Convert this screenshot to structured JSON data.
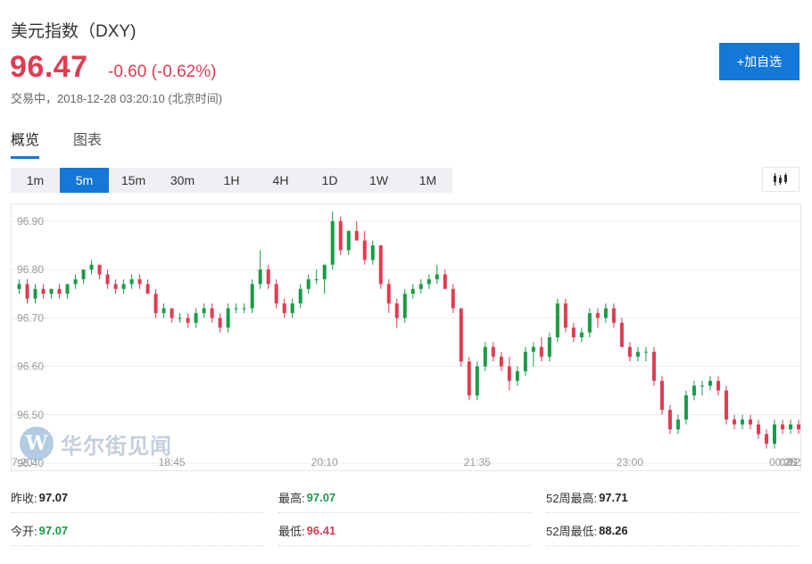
{
  "header": {
    "title": "美元指数（DXY)",
    "price": "96.47",
    "change": "-0.60 (-0.62%)",
    "status": "交易中，",
    "timestamp": "2018-12-28 03:20:10",
    "timezone": "(北京时间)",
    "add_button": "+加自选"
  },
  "tabs": [
    {
      "label": "概览",
      "active": true
    },
    {
      "label": "图表",
      "active": false
    }
  ],
  "periods": [
    {
      "label": "1m",
      "active": false
    },
    {
      "label": "5m",
      "active": true
    },
    {
      "label": "15m",
      "active": false
    },
    {
      "label": "30m",
      "active": false
    },
    {
      "label": "1H",
      "active": false
    },
    {
      "label": "4H",
      "active": false
    },
    {
      "label": "1D",
      "active": false
    },
    {
      "label": "1W",
      "active": false
    },
    {
      "label": "1M",
      "active": false
    }
  ],
  "watermark": {
    "logo": "W",
    "text": "华尔街见闻"
  },
  "colors": {
    "up": "#1a9b47",
    "down": "#e03b51",
    "accent": "#1478d8",
    "grid": "#ececec"
  },
  "chart_data": {
    "type": "candlestick",
    "ylim": [
      96.4,
      96.92
    ],
    "y_ticks": [
      96.9,
      96.8,
      96.7,
      96.6,
      96.5,
      96.4
    ],
    "y_tick_labels": [
      "96.90",
      "96.80",
      "96.70",
      "96.60",
      "96.50",
      "96.40"
    ],
    "x_tick_labels": [
      "17:20",
      "18:45",
      "20:10",
      "21:35",
      "23:00",
      "00:25",
      "01:55",
      "03:2"
    ],
    "x_tick_index": [
      0,
      19,
      38,
      57,
      76,
      95,
      114,
      133
    ],
    "interval": "5m",
    "candles": [
      [
        96.76,
        96.78,
        96.75,
        96.77
      ],
      [
        96.77,
        96.78,
        96.73,
        96.74
      ],
      [
        96.74,
        96.77,
        96.73,
        96.76
      ],
      [
        96.76,
        96.77,
        96.74,
        96.75
      ],
      [
        96.75,
        96.76,
        96.74,
        96.76
      ],
      [
        96.76,
        96.77,
        96.74,
        96.75
      ],
      [
        96.75,
        96.77,
        96.74,
        96.77
      ],
      [
        96.77,
        96.79,
        96.76,
        96.78
      ],
      [
        96.78,
        96.8,
        96.77,
        96.8
      ],
      [
        96.8,
        96.82,
        96.79,
        96.81
      ],
      [
        96.81,
        96.81,
        96.78,
        96.79
      ],
      [
        96.79,
        96.8,
        96.76,
        96.77
      ],
      [
        96.77,
        96.78,
        96.75,
        96.76
      ],
      [
        96.76,
        96.78,
        96.75,
        96.77
      ],
      [
        96.77,
        96.79,
        96.76,
        96.78
      ],
      [
        96.78,
        96.79,
        96.76,
        96.77
      ],
      [
        96.77,
        96.78,
        96.75,
        96.75
      ],
      [
        96.75,
        96.76,
        96.7,
        96.71
      ],
      [
        96.71,
        96.73,
        96.7,
        96.72
      ],
      [
        96.72,
        96.72,
        96.69,
        96.7
      ],
      [
        96.7,
        96.71,
        96.69,
        96.7
      ],
      [
        96.7,
        96.71,
        96.68,
        96.69
      ],
      [
        96.69,
        96.72,
        96.68,
        96.71
      ],
      [
        96.71,
        96.73,
        96.7,
        96.72
      ],
      [
        96.72,
        96.73,
        96.69,
        96.7
      ],
      [
        96.7,
        96.71,
        96.67,
        96.68
      ],
      [
        96.68,
        96.73,
        96.67,
        96.72
      ],
      [
        96.72,
        96.73,
        96.71,
        96.72
      ],
      [
        96.72,
        96.73,
        96.71,
        96.72
      ],
      [
        96.72,
        96.78,
        96.71,
        96.77
      ],
      [
        96.77,
        96.84,
        96.76,
        96.8
      ],
      [
        96.8,
        96.81,
        96.76,
        96.77
      ],
      [
        96.77,
        96.78,
        96.72,
        96.73
      ],
      [
        96.73,
        96.74,
        96.7,
        96.71
      ],
      [
        96.71,
        96.74,
        96.7,
        96.73
      ],
      [
        96.73,
        96.77,
        96.72,
        96.76
      ],
      [
        96.76,
        96.79,
        96.75,
        96.78
      ],
      [
        96.78,
        96.8,
        96.77,
        96.78
      ],
      [
        96.78,
        96.81,
        96.75,
        96.81
      ],
      [
        96.81,
        96.92,
        96.8,
        96.9
      ],
      [
        96.9,
        96.91,
        96.83,
        96.84
      ],
      [
        96.84,
        96.88,
        96.83,
        96.88
      ],
      [
        96.88,
        96.9,
        96.86,
        96.86
      ],
      [
        96.86,
        96.88,
        96.81,
        96.82
      ],
      [
        96.82,
        96.86,
        96.81,
        96.85
      ],
      [
        96.85,
        96.85,
        96.76,
        96.77
      ],
      [
        96.77,
        96.78,
        96.71,
        96.73
      ],
      [
        96.73,
        96.74,
        96.68,
        96.7
      ],
      [
        96.7,
        96.76,
        96.69,
        96.75
      ],
      [
        96.75,
        96.77,
        96.74,
        96.76
      ],
      [
        96.76,
        96.78,
        96.75,
        96.77
      ],
      [
        96.77,
        96.79,
        96.76,
        96.78
      ],
      [
        96.78,
        96.81,
        96.77,
        96.79
      ],
      [
        96.79,
        96.8,
        96.76,
        96.76
      ],
      [
        96.76,
        96.77,
        96.71,
        96.72
      ],
      [
        96.72,
        96.72,
        96.6,
        96.61
      ],
      [
        96.61,
        96.62,
        96.53,
        96.54
      ],
      [
        96.54,
        96.61,
        96.53,
        96.6
      ],
      [
        96.6,
        96.65,
        96.59,
        96.64
      ],
      [
        96.64,
        96.65,
        96.61,
        96.62
      ],
      [
        96.62,
        96.63,
        96.59,
        96.6
      ],
      [
        96.6,
        96.62,
        96.55,
        96.57
      ],
      [
        96.57,
        96.6,
        96.56,
        96.59
      ],
      [
        96.59,
        96.64,
        96.58,
        96.63
      ],
      [
        96.63,
        96.65,
        96.6,
        96.64
      ],
      [
        96.64,
        96.66,
        96.61,
        96.62
      ],
      [
        96.62,
        96.67,
        96.61,
        96.66
      ],
      [
        96.66,
        96.74,
        96.65,
        96.73
      ],
      [
        96.73,
        96.74,
        96.67,
        96.68
      ],
      [
        96.68,
        96.69,
        96.65,
        96.66
      ],
      [
        96.66,
        96.68,
        96.65,
        96.67
      ],
      [
        96.67,
        96.72,
        96.66,
        96.71
      ],
      [
        96.71,
        96.72,
        96.68,
        96.7
      ],
      [
        96.7,
        96.73,
        96.69,
        96.72
      ],
      [
        96.72,
        96.73,
        96.68,
        96.69
      ],
      [
        96.69,
        96.7,
        96.64,
        96.64
      ],
      [
        96.64,
        96.65,
        96.61,
        96.62
      ],
      [
        96.62,
        96.64,
        96.61,
        96.63
      ],
      [
        96.63,
        96.64,
        96.61,
        96.63
      ],
      [
        96.63,
        96.64,
        96.56,
        96.57
      ],
      [
        96.57,
        96.58,
        96.5,
        96.51
      ],
      [
        96.51,
        96.52,
        96.46,
        96.47
      ],
      [
        96.47,
        96.5,
        96.46,
        96.49
      ],
      [
        96.49,
        96.55,
        96.48,
        96.54
      ],
      [
        96.54,
        96.57,
        96.53,
        96.56
      ],
      [
        96.56,
        96.57,
        96.54,
        96.56
      ],
      [
        96.56,
        96.58,
        96.55,
        96.57
      ],
      [
        96.57,
        96.58,
        96.54,
        96.55
      ],
      [
        96.55,
        96.56,
        96.48,
        96.49
      ],
      [
        96.49,
        96.5,
        96.47,
        96.48
      ],
      [
        96.48,
        96.5,
        96.47,
        96.49
      ],
      [
        96.49,
        96.5,
        96.47,
        96.48
      ],
      [
        96.48,
        96.49,
        96.45,
        96.46
      ],
      [
        96.46,
        96.47,
        96.43,
        96.44
      ],
      [
        96.44,
        96.49,
        96.43,
        96.48
      ],
      [
        96.48,
        96.49,
        96.46,
        96.47
      ],
      [
        96.47,
        96.49,
        96.46,
        96.48
      ],
      [
        96.48,
        96.49,
        96.46,
        96.47
      ]
    ]
  },
  "stats": [
    {
      "label": "昨收:",
      "value": "97.07",
      "tone": "dark"
    },
    {
      "label": "最高:",
      "value": "97.07",
      "tone": "green"
    },
    {
      "label": "52周最高:",
      "value": "97.71",
      "tone": "dark"
    },
    {
      "label": "今开:",
      "value": "97.07",
      "tone": "green"
    },
    {
      "label": "最低:",
      "value": "96.41",
      "tone": "red"
    },
    {
      "label": "52周最低:",
      "value": "88.26",
      "tone": "dark"
    }
  ]
}
